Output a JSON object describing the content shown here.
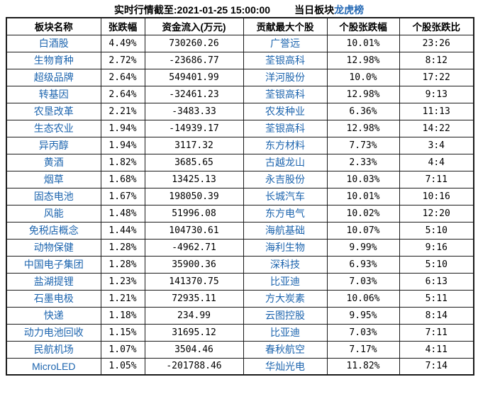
{
  "header": {
    "timestamp_label": "实时行情截至:2021-01-25 15:00:00",
    "board_prefix": "当日板块",
    "board_link": "龙虎榜"
  },
  "colors": {
    "link_blue": "#1c64ae",
    "header_change_blue": "#2e6ec8",
    "header_inflow_navy": "#1d3a70",
    "text_black": "#000000",
    "border": "#1a1a1a",
    "background": "#ffffff"
  },
  "chart_data": {
    "type": "table",
    "title": "当日板块龙虎榜",
    "subtitle": "实时行情截至:2021-01-25 15:00:00",
    "columns": [
      "板块名称",
      "张跌幅",
      "资金流入(万元)",
      "贡献最大个股",
      "个股张跌幅",
      "个股张跌比"
    ],
    "rows": [
      [
        "白酒股",
        "4.49%",
        "730260.26",
        "广誉远",
        "10.01%",
        "23:26"
      ],
      [
        "生物育种",
        "2.72%",
        "-23686.77",
        "荃银高科",
        "12.98%",
        "8:12"
      ],
      [
        "超级品牌",
        "2.64%",
        "549401.99",
        "洋河股份",
        "10.0%",
        "17:22"
      ],
      [
        "转基因",
        "2.64%",
        "-32461.23",
        "荃银高科",
        "12.98%",
        "9:13"
      ],
      [
        "农垦改革",
        "2.21%",
        "-3483.33",
        "农发种业",
        "6.36%",
        "11:13"
      ],
      [
        "生态农业",
        "1.94%",
        "-14939.17",
        "荃银高科",
        "12.98%",
        "14:22"
      ],
      [
        "异丙醇",
        "1.94%",
        "3117.32",
        "东方材料",
        "7.73%",
        "3:4"
      ],
      [
        "黄酒",
        "1.82%",
        "3685.65",
        "古越龙山",
        "2.33%",
        "4:4"
      ],
      [
        "烟草",
        "1.68%",
        "13425.13",
        "永吉股份",
        "10.03%",
        "7:11"
      ],
      [
        "固态电池",
        "1.67%",
        "198050.39",
        "长城汽车",
        "10.01%",
        "10:16"
      ],
      [
        "风能",
        "1.48%",
        "51996.08",
        "东方电气",
        "10.02%",
        "12:20"
      ],
      [
        "免税店概念",
        "1.44%",
        "104730.61",
        "海航基础",
        "10.07%",
        "5:10"
      ],
      [
        "动物保健",
        "1.28%",
        "-4962.71",
        "海利生物",
        "9.99%",
        "9:16"
      ],
      [
        "中国电子集团",
        "1.28%",
        "35900.36",
        "深科技",
        "6.93%",
        "5:10"
      ],
      [
        "盐湖提锂",
        "1.23%",
        "141370.75",
        "比亚迪",
        "7.03%",
        "6:13"
      ],
      [
        "石墨电极",
        "1.21%",
        "72935.11",
        "方大炭素",
        "10.06%",
        "5:11"
      ],
      [
        "快递",
        "1.18%",
        "234.99",
        "云图控股",
        "9.95%",
        "8:14"
      ],
      [
        "动力电池回收",
        "1.15%",
        "31695.12",
        "比亚迪",
        "7.03%",
        "7:11"
      ],
      [
        "民航机场",
        "1.07%",
        "3504.46",
        "春秋航空",
        "7.17%",
        "4:11"
      ],
      [
        "MicroLED",
        "1.05%",
        "-201788.46",
        "华灿光电",
        "11.82%",
        "7:14"
      ]
    ]
  }
}
